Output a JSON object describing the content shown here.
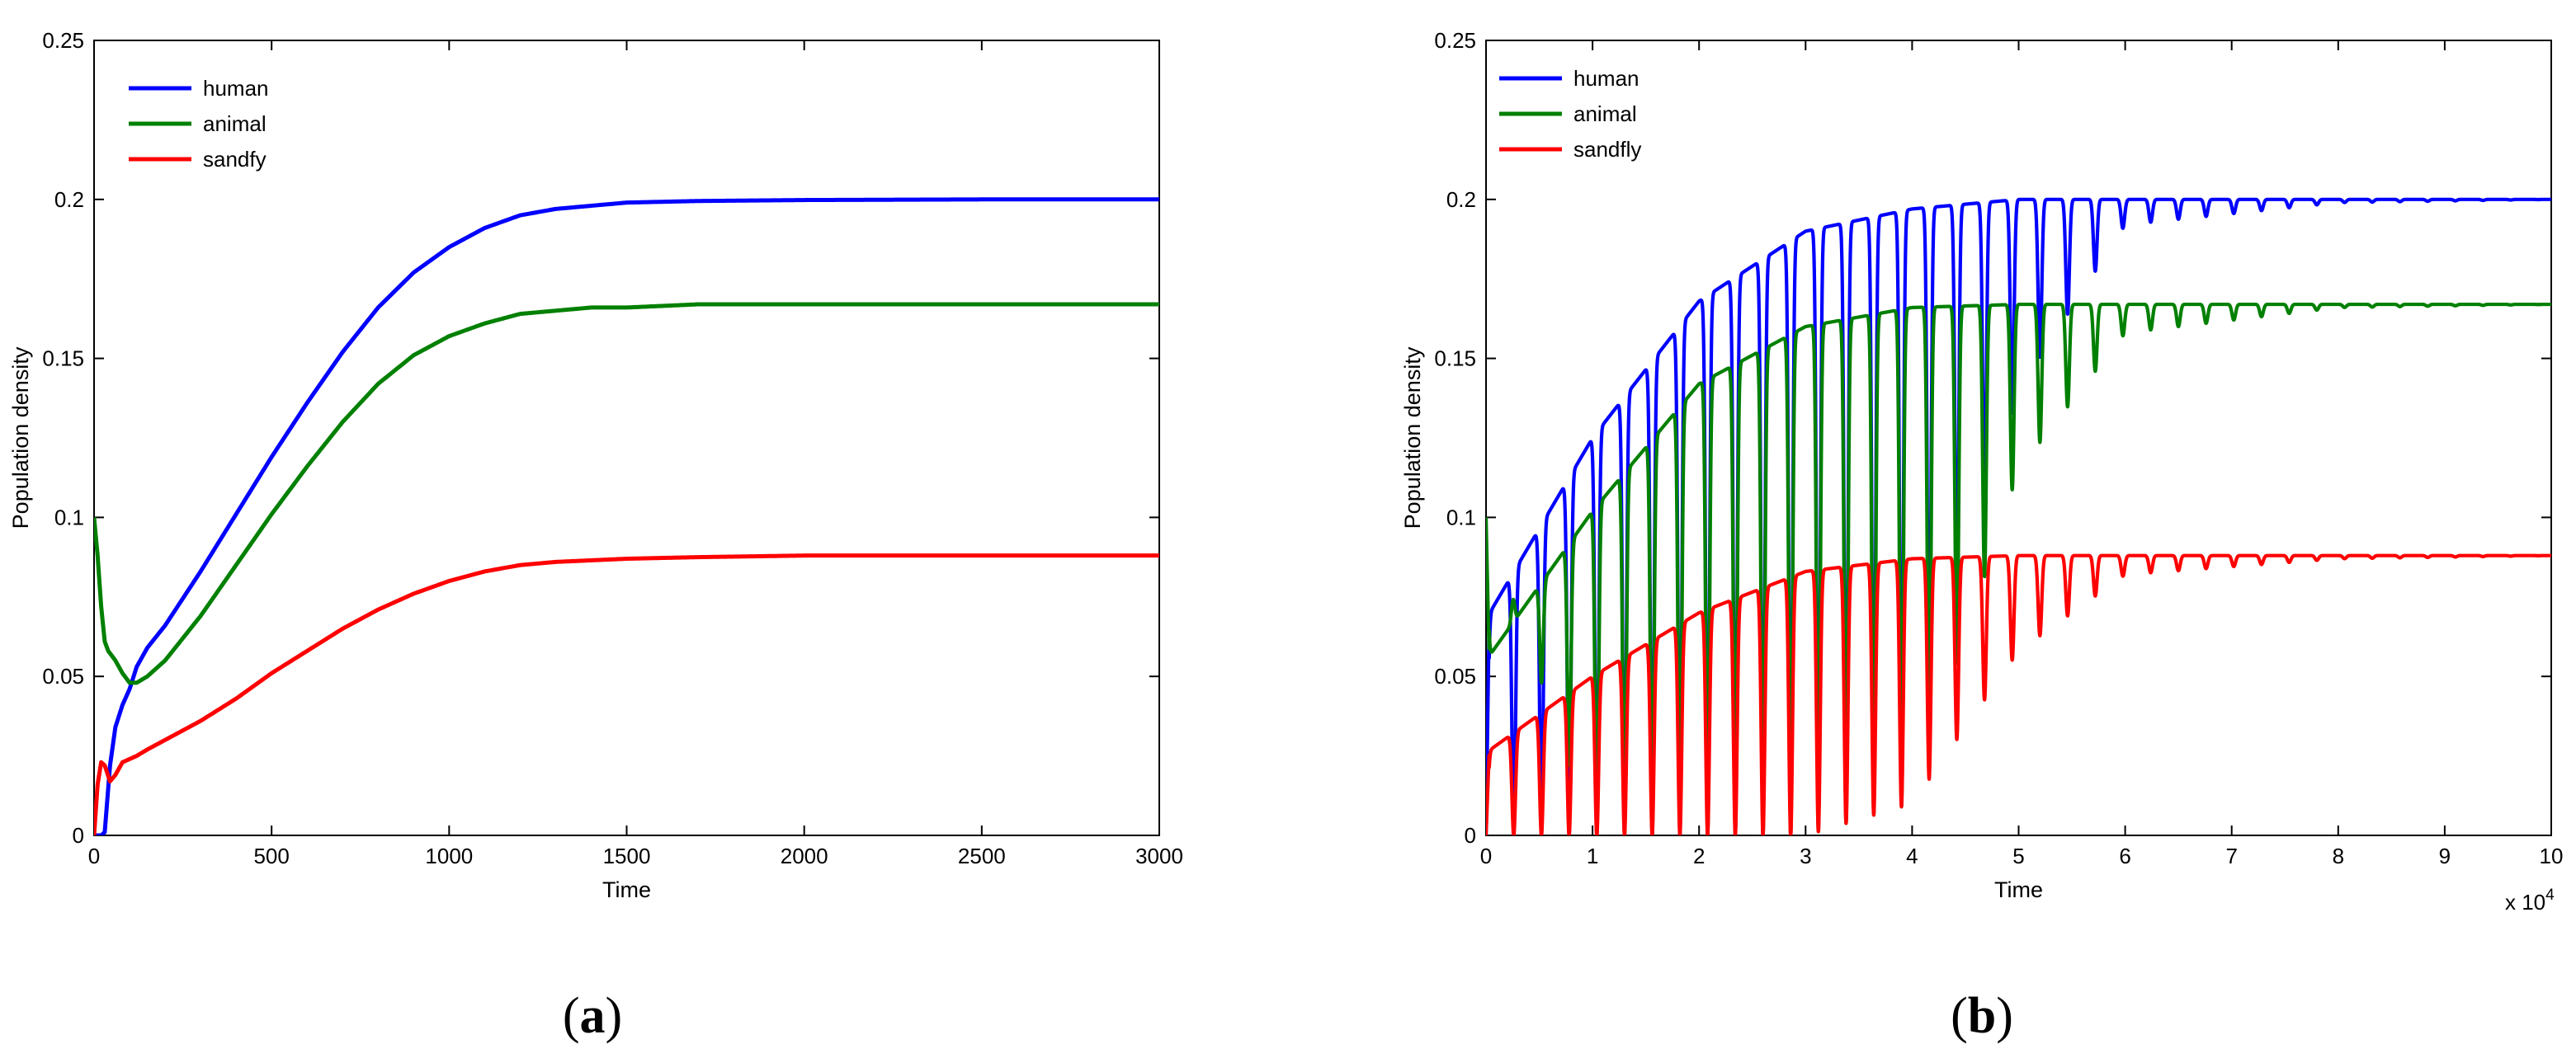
{
  "chart_data": [
    {
      "type": "line",
      "panel_label": "a",
      "xlabel": "Time",
      "ylabel": "Population density",
      "xlim": [
        0,
        3000
      ],
      "ylim": [
        0,
        0.25
      ],
      "xticks": [
        "0",
        "500",
        "1000",
        "1500",
        "2000",
        "2500",
        "3000"
      ],
      "yticks": [
        "0",
        "0.05",
        "0.1",
        "0.15",
        "0.2",
        "0.25"
      ],
      "x_exponent_label": "",
      "grid": false,
      "legend_position": "top-left",
      "series": [
        {
          "name": "human",
          "color": "#0000ff",
          "x": [
            0,
            20,
            30,
            45,
            60,
            80,
            100,
            120,
            150,
            200,
            300,
            400,
            500,
            600,
            700,
            800,
            900,
            1000,
            1100,
            1200,
            1300,
            1400,
            1500,
            1700,
            2000,
            2500,
            3000
          ],
          "y": [
            0,
            0,
            0.001,
            0.022,
            0.034,
            0.041,
            0.046,
            0.053,
            0.059,
            0.066,
            0.083,
            0.101,
            0.119,
            0.136,
            0.152,
            0.166,
            0.177,
            0.185,
            0.191,
            0.195,
            0.197,
            0.198,
            0.199,
            0.1995,
            0.1998,
            0.2,
            0.2
          ]
        },
        {
          "name": "animal",
          "color": "#008000",
          "x": [
            0,
            10,
            20,
            30,
            40,
            60,
            80,
            100,
            120,
            150,
            200,
            300,
            400,
            500,
            600,
            700,
            800,
            900,
            1000,
            1100,
            1200,
            1300,
            1400,
            1500,
            1700,
            2000,
            2500,
            3000
          ],
          "y": [
            0.1,
            0.088,
            0.072,
            0.061,
            0.058,
            0.055,
            0.051,
            0.048,
            0.048,
            0.05,
            0.055,
            0.069,
            0.085,
            0.101,
            0.116,
            0.13,
            0.142,
            0.151,
            0.157,
            0.161,
            0.164,
            0.165,
            0.166,
            0.166,
            0.167,
            0.167,
            0.167,
            0.167
          ]
        },
        {
          "name": "sandfy",
          "color": "#ff0000",
          "x": [
            0,
            10,
            20,
            30,
            45,
            60,
            80,
            100,
            120,
            150,
            200,
            300,
            400,
            500,
            600,
            700,
            800,
            900,
            1000,
            1100,
            1200,
            1300,
            1400,
            1500,
            1700,
            2000,
            2500,
            3000
          ],
          "y": [
            0,
            0.016,
            0.023,
            0.022,
            0.017,
            0.019,
            0.023,
            0.024,
            0.025,
            0.027,
            0.03,
            0.036,
            0.043,
            0.051,
            0.058,
            0.065,
            0.071,
            0.076,
            0.08,
            0.083,
            0.085,
            0.086,
            0.0865,
            0.087,
            0.0875,
            0.088,
            0.088,
            0.088
          ]
        }
      ]
    },
    {
      "type": "line",
      "panel_label": "b",
      "xlabel": "Time",
      "ylabel": "Population density",
      "xlim": [
        0,
        10
      ],
      "x_multiplier": 10000,
      "ylim": [
        0,
        0.25
      ],
      "xticks": [
        "0",
        "1",
        "2",
        "3",
        "4",
        "5",
        "6",
        "7",
        "8",
        "9",
        "10"
      ],
      "yticks": [
        "0",
        "0.05",
        "0.1",
        "0.15",
        "0.2",
        "0.25"
      ],
      "x_exponent_label": "x 10",
      "x_exponent_power": "4",
      "grid": false,
      "legend_position": "top-left",
      "oscillation": {
        "period": 0.26,
        "envelope_t": [
          0,
          1,
          2,
          3,
          4,
          5,
          6,
          8,
          10
        ]
      },
      "series": [
        {
          "name": "human",
          "color": "#0000ff",
          "envelope_max": [
            0.068,
            0.125,
            0.168,
            0.19,
            0.197,
            0.2,
            0.2,
            0.2,
            0.2
          ],
          "envelope_min": [
            0,
            0,
            0,
            0,
            0.02,
            0.14,
            0.192,
            0.199,
            0.2
          ]
        },
        {
          "name": "animal",
          "color": "#008000",
          "envelope_max": [
            0.055,
            0.102,
            0.142,
            0.16,
            0.166,
            0.167,
            0.167,
            0.167,
            0.167
          ],
          "envelope_min": [
            0.1,
            0,
            0,
            0,
            0.01,
            0.115,
            0.158,
            0.166,
            0.167
          ]
        },
        {
          "name": "sandfly",
          "color": "#ff0000",
          "envelope_max": [
            0.026,
            0.05,
            0.07,
            0.083,
            0.087,
            0.088,
            0.088,
            0.088,
            0.088
          ],
          "envelope_min": [
            0,
            0,
            0,
            0,
            0.01,
            0.058,
            0.082,
            0.087,
            0.088
          ]
        }
      ]
    }
  ]
}
